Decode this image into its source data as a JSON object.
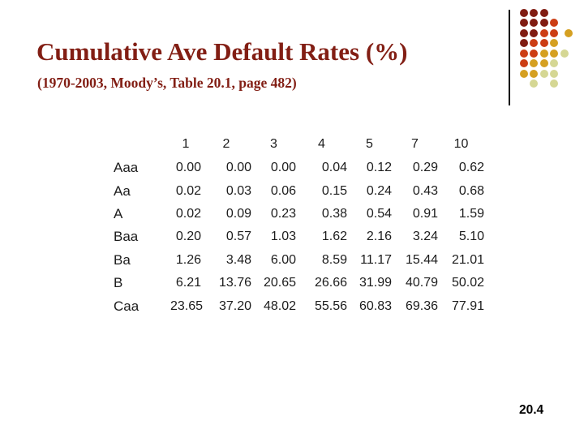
{
  "slide": {
    "title": "Cumulative Ave Default Rates (%)",
    "subtitle": "(1970-2003, Moody’s, Table 20.1, page 482)",
    "slide_number": "20.4",
    "title_color": "#821E14",
    "background_color": "#FFFFFF"
  },
  "table": {
    "column_headers": [
      "1",
      "2",
      "3",
      "4",
      "5",
      "7",
      "10"
    ],
    "rows": [
      {
        "label": "Aaa",
        "values": [
          "0.00",
          "0.00",
          "0.00",
          "0.04",
          "0.12",
          "0.29",
          "0.62"
        ]
      },
      {
        "label": "Aa",
        "values": [
          "0.02",
          "0.03",
          "0.06",
          "0.15",
          "0.24",
          "0.43",
          "0.68"
        ]
      },
      {
        "label": "A",
        "values": [
          "0.02",
          "0.09",
          "0.23",
          "0.38",
          "0.54",
          "0.91",
          "1.59"
        ]
      },
      {
        "label": "Baa",
        "values": [
          "0.20",
          "0.57",
          "1.03",
          "1.62",
          "2.16",
          "3.24",
          "5.10"
        ]
      },
      {
        "label": "Ba",
        "values": [
          "1.26",
          "3.48",
          "6.00",
          "8.59",
          "11.17",
          "15.44",
          "21.01"
        ]
      },
      {
        "label": "B",
        "values": [
          "6.21",
          "13.76",
          "20.65",
          "26.66",
          "31.99",
          "40.79",
          "50.02"
        ]
      },
      {
        "label": "Caa",
        "values": [
          "23.65",
          "37.20",
          "48.02",
          "55.56",
          "60.83",
          "69.36",
          "77.91"
        ]
      }
    ]
  },
  "decoration": {
    "separator_line_color": "#000000",
    "dot_palette": {
      "maroon": "#801C12",
      "redorange": "#CC3D14",
      "gold": "#D5A021",
      "pale": "#D5D794"
    },
    "dot_rows": [
      [
        {
          "col": 0,
          "color": "maroon"
        },
        {
          "col": 1,
          "color": "maroon"
        },
        {
          "col": 2,
          "color": "maroon"
        }
      ],
      [
        {
          "col": 0,
          "color": "maroon"
        },
        {
          "col": 1,
          "color": "maroon"
        },
        {
          "col": 2,
          "color": "maroon"
        },
        {
          "col": 3,
          "color": "redorange"
        }
      ],
      [
        {
          "col": 0,
          "color": "maroon"
        },
        {
          "col": 1,
          "color": "maroon"
        },
        {
          "col": 2,
          "color": "redorange"
        },
        {
          "col": 3,
          "color": "redorange"
        },
        {
          "col": 4.4,
          "color": "gold"
        }
      ],
      [
        {
          "col": 0,
          "color": "maroon"
        },
        {
          "col": 1,
          "color": "redorange"
        },
        {
          "col": 2,
          "color": "redorange"
        },
        {
          "col": 3,
          "color": "gold"
        }
      ],
      [
        {
          "col": 0,
          "color": "redorange"
        },
        {
          "col": 1,
          "color": "redorange"
        },
        {
          "col": 2,
          "color": "gold"
        },
        {
          "col": 3,
          "color": "gold"
        },
        {
          "col": 4,
          "color": "pale"
        }
      ],
      [
        {
          "col": 0,
          "color": "redorange"
        },
        {
          "col": 1,
          "color": "gold"
        },
        {
          "col": 2,
          "color": "gold"
        },
        {
          "col": 3,
          "color": "pale"
        }
      ],
      [
        {
          "col": 0,
          "color": "gold"
        },
        {
          "col": 1,
          "color": "gold"
        },
        {
          "col": 2,
          "color": "pale"
        },
        {
          "col": 3,
          "color": "pale"
        }
      ],
      [
        {
          "col": 1,
          "color": "pale"
        },
        {
          "col": 3,
          "color": "pale"
        }
      ]
    ]
  }
}
